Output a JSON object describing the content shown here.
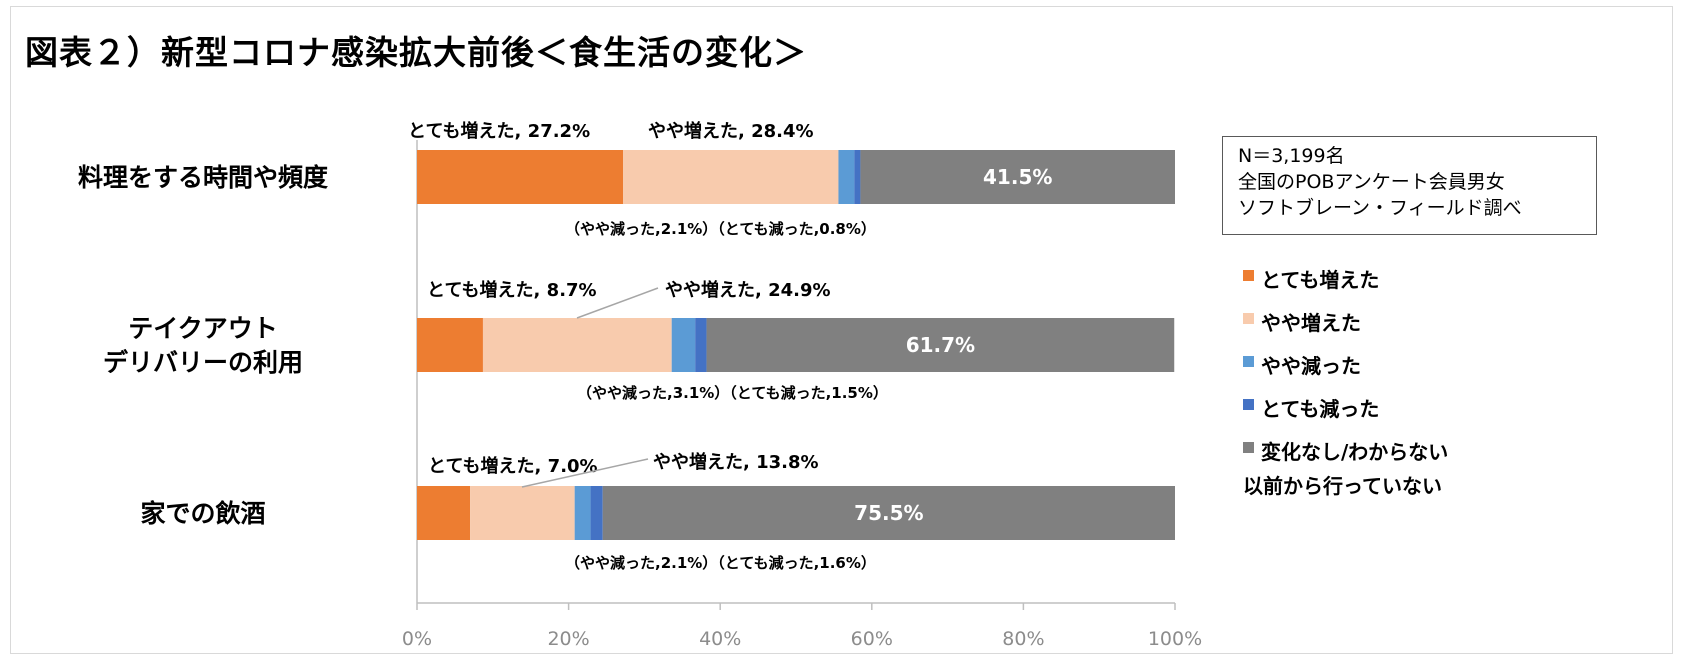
{
  "title": "図表２）新型コロナ感染拡大前後＜食生活の変化＞",
  "note": {
    "line1": "N＝3,199名",
    "line2": "全国のPOBアンケート会員男女",
    "line3": "ソフトブレーン・フィールド調べ"
  },
  "colors": {
    "greatly_increased": "#ED7D31",
    "somewhat_increased": "#F8CBAD",
    "somewhat_decreased": "#5B9BD5",
    "greatly_decreased": "#4472C4",
    "no_change": "#808080"
  },
  "chart_data": {
    "type": "bar",
    "orientation": "horizontal",
    "stacked": true,
    "categories": [
      "料理をする時間や頻度",
      "テイクアウト\nデリバリーの利用",
      "家での飲酒"
    ],
    "series": [
      {
        "name": "とても増えた",
        "values": [
          27.2,
          8.7,
          7.0
        ]
      },
      {
        "name": "やや増えた",
        "values": [
          28.4,
          24.9,
          13.8
        ]
      },
      {
        "name": "やや減った",
        "values": [
          2.1,
          3.1,
          2.1
        ]
      },
      {
        "name": "とても減った",
        "values": [
          0.8,
          1.5,
          1.6
        ]
      },
      {
        "name": "変化なし/わからない\n以前から行っていない",
        "values": [
          41.5,
          61.7,
          75.5
        ]
      }
    ],
    "xlim": [
      0,
      100
    ],
    "x_ticks": [
      "0%",
      "20%",
      "40%",
      "60%",
      "80%",
      "100%"
    ],
    "legend_position": "right",
    "annotations": [
      {
        "above": [
          "とても増えた, 27.2%",
          "やや増えた, 28.4%"
        ],
        "below": "（やや減った,2.1%）（とても減った,0.8%）",
        "inside": "41.5%"
      },
      {
        "above": [
          "とても増えた, 8.7%",
          "やや増えた, 24.9%"
        ],
        "below": "（やや減った,3.1%）（とても減った,1.5%）",
        "inside": "61.7%"
      },
      {
        "above": [
          "とても増えた, 7.0%",
          "やや増えた, 13.8%"
        ],
        "below": "（やや減った,2.1%）（とても減った,1.6%）",
        "inside": "75.5%"
      }
    ]
  }
}
